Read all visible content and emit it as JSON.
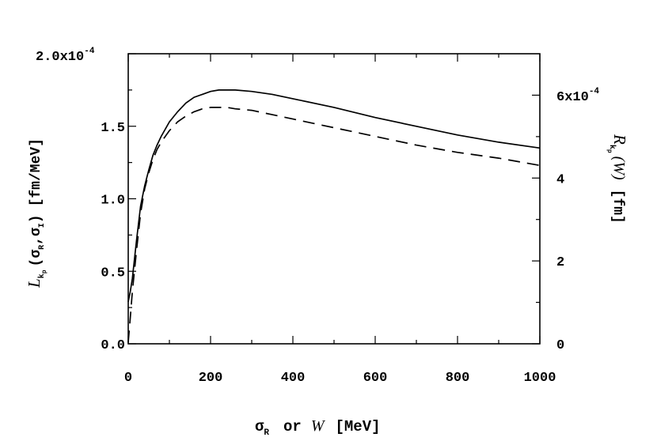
{
  "chart_data": {
    "type": "line",
    "x": [
      0,
      5,
      10,
      20,
      30,
      40,
      50,
      60,
      70,
      80,
      100,
      120,
      140,
      160,
      180,
      200,
      220,
      240,
      260,
      300,
      350,
      400,
      500,
      600,
      700,
      800,
      900,
      1000
    ],
    "series": [
      {
        "style": "solid",
        "axis": "left",
        "values": [
          2.9e-05,
          3.6e-05,
          4.5e-05,
          7.1e-05,
          9.5e-05,
          0.000109,
          0.00012,
          0.00013,
          0.000137,
          0.000143,
          0.000153,
          0.00016,
          0.000166,
          0.00017,
          0.000172,
          0.000174,
          0.000175,
          0.000175,
          0.000175,
          0.000174,
          0.000172,
          0.000169,
          0.000163,
          0.000156,
          0.00015,
          0.000144,
          0.000139,
          0.000135
        ]
      },
      {
        "style": "dashed",
        "axis": "left",
        "values": [
          1e-06,
          1.8e-05,
          3.6e-05,
          6.4e-05,
          9e-05,
          0.000107,
          0.000118,
          0.000127,
          0.000134,
          0.000139,
          0.000147,
          0.000153,
          0.000157,
          0.00016,
          0.000162,
          0.000163,
          0.000163,
          0.000163,
          0.000162,
          0.000161,
          0.000158,
          0.000155,
          0.000149,
          0.000143,
          0.000137,
          0.000132,
          0.000128,
          0.000123
        ]
      }
    ],
    "xlim": [
      0,
      1000
    ],
    "ylim_left": [
      0,
      0.0002
    ],
    "ylim_right": [
      0,
      0.0007
    ],
    "x_ticks": [
      "0",
      "200",
      "400",
      "600",
      "800",
      "1000"
    ],
    "left_ticks": [
      "0.0",
      "0.5",
      "1.0",
      "1.5"
    ],
    "left_top_tick": {
      "mantissa": "2.0x10",
      "exponent": "-4"
    },
    "right_ticks": [
      "0",
      "2",
      "4"
    ],
    "right_top_tick": {
      "mantissa": "6x10",
      "exponent": "-4"
    },
    "xlabel": {
      "sigma": "σ",
      "sub": "R",
      "mid": "or",
      "w": "W",
      "unit": "[MeV]"
    },
    "ylabel_left": {
      "L": "L",
      "sub_k": "k",
      "sub_p": "p",
      "paren": "(σ",
      "sub_R": "R",
      "comma": ",σ",
      "sub_I": "I",
      "close": ")",
      "unit": "[fm/MeV]"
    },
    "ylabel_right": {
      "R": "R",
      "sub_k": "k",
      "sub_p": "p",
      "w": "(W)",
      "unit": "[fm]"
    }
  }
}
